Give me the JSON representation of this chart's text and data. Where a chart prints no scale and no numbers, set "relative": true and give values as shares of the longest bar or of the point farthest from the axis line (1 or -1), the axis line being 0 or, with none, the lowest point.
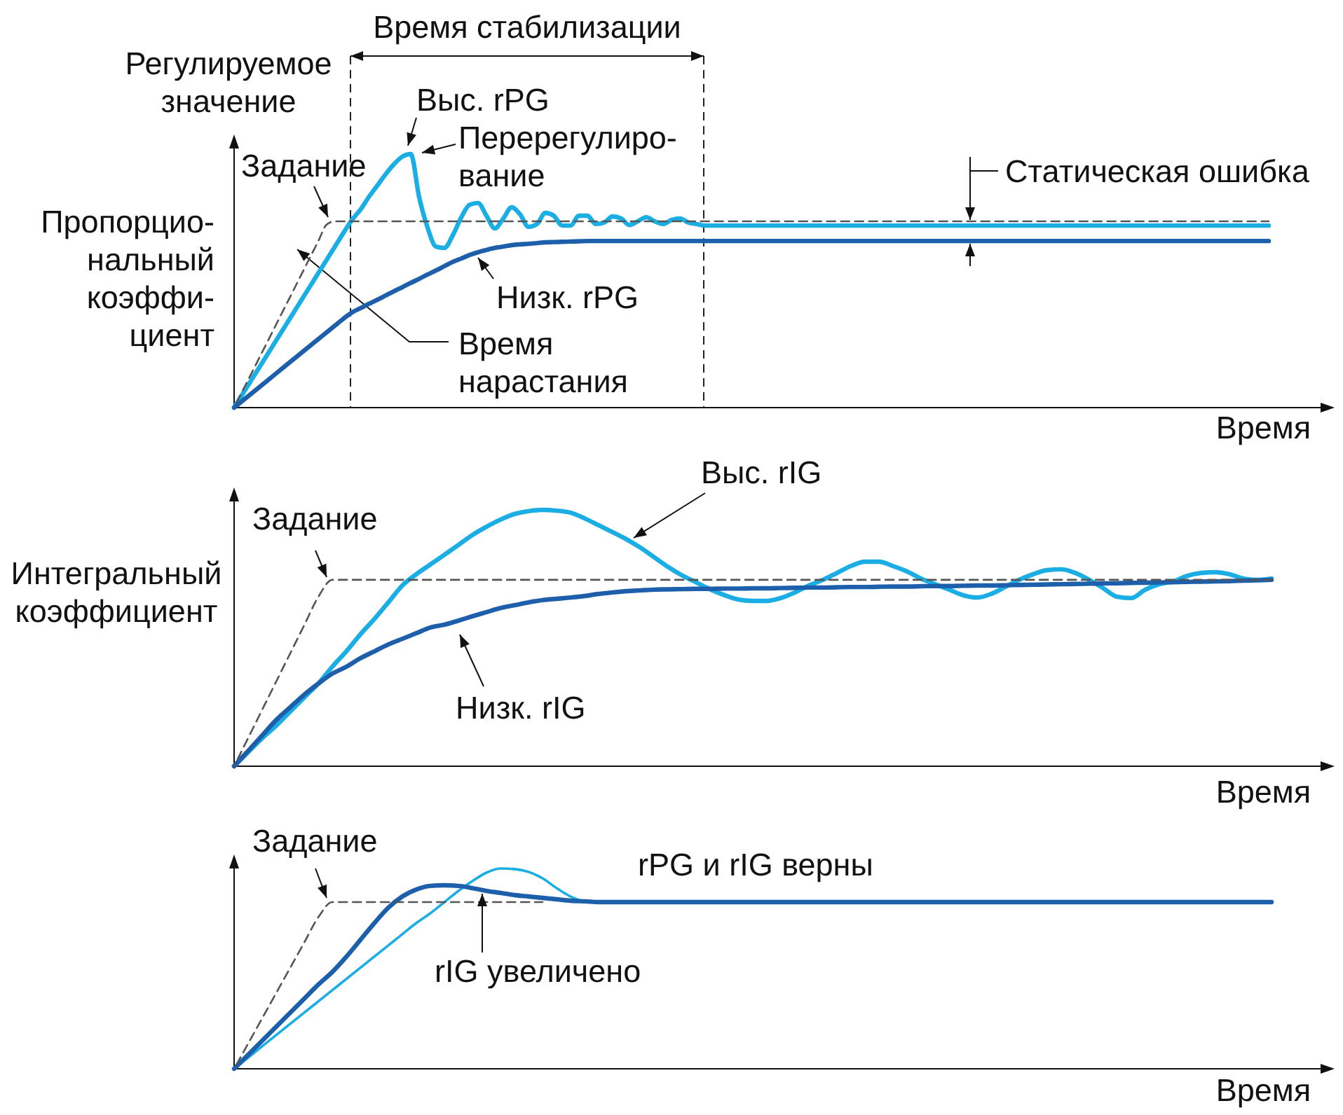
{
  "chart_data": [
    {
      "type": "line",
      "relative": true,
      "xlabel": "Время",
      "ylabel": "Регулируемое\nзначение",
      "title": "Пропорцио-\nнальный\nкоэффи-\nциент",
      "categories": [
        null,
        null,
        null,
        null,
        null,
        null,
        null,
        null,
        null,
        null,
        null,
        null,
        null,
        null,
        null,
        null,
        null,
        null,
        null,
        null,
        null,
        null,
        null,
        null,
        null,
        null,
        null,
        null,
        null,
        null,
        null,
        null,
        null,
        null,
        null,
        null,
        null,
        null,
        null,
        null,
        null,
        null,
        null,
        null,
        null,
        null,
        null,
        null,
        null,
        null,
        null,
        null,
        null,
        null,
        null,
        null,
        null,
        null,
        null,
        null,
        null,
        null,
        null,
        null,
        null,
        null,
        null,
        null,
        null,
        null,
        null,
        null,
        null,
        null,
        null,
        null,
        null,
        null,
        null,
        null,
        null,
        null,
        null,
        null,
        null,
        null,
        null,
        null,
        null,
        null,
        null,
        null,
        null,
        null,
        null,
        null,
        null,
        null,
        null,
        null,
        null,
        null,
        null,
        null,
        null,
        null,
        null,
        null,
        null,
        null,
        null,
        null,
        null,
        null,
        null,
        null,
        null,
        null,
        null,
        null,
        null,
        null,
        null,
        null
      ],
      "series": [
        {
          "name": "Задание",
          "color": "#555555",
          "line_style": "dashed",
          "values": [
            0,
            0.066,
            0.131,
            0.197,
            0.262,
            0.328,
            0.394,
            0.459,
            0.525,
            0.591,
            0.656,
            0.722,
            0.735,
            0.735,
            0.735,
            0.735,
            0.735,
            0.735,
            0.735,
            0.735,
            0.735,
            0.735,
            0.735,
            0.735,
            0.735,
            0.735,
            0.735,
            0.735,
            0.735,
            0.735,
            0.735,
            0.735,
            0.735,
            0.735,
            0.735,
            0.735,
            0.735,
            0.735,
            0.735,
            0.735,
            0.735,
            0.735,
            0.735,
            0.735,
            0.735,
            0.735,
            0.735,
            0.735,
            0.735,
            0.735,
            0.735,
            0.735,
            0.735,
            0.735,
            0.735,
            0.735,
            0.735,
            0.735,
            0.735,
            0.735,
            0.735,
            0.735,
            0.735,
            0.735,
            0.735,
            0.735,
            0.735,
            0.735,
            0.735,
            0.735,
            0.735,
            0.735,
            0.735,
            0.735,
            0.735,
            0.735,
            0.735,
            0.735,
            0.735,
            0.735,
            0.735,
            0.735,
            0.735,
            0.735,
            0.735,
            0.735,
            0.735,
            0.735,
            0.735,
            0.735,
            0.735,
            0.735,
            0.735,
            0.735,
            0.735,
            0.735,
            0.735,
            0.735,
            0.735,
            0.735,
            0.735,
            0.735,
            0.735,
            0.735,
            0.735,
            0.735,
            0.735,
            0.735,
            0.735,
            0.735,
            0.735,
            0.735,
            0.735,
            0.735,
            0.735,
            0.735,
            0.735,
            0.735,
            0.735,
            0.735,
            0.735,
            0.735,
            0.735,
            0.735
          ]
        },
        {
          "name": "Выс. rPG",
          "color": "#1aaee5",
          "line_style": "solid",
          "values": [
            0,
            0.053,
            0.106,
            0.159,
            0.212,
            0.265,
            0.318,
            0.371,
            0.424,
            0.477,
            0.53,
            0.583,
            0.636,
            0.689,
            0.74,
            0.78,
            0.83,
            0.875,
            0.92,
            0.96,
            0.99,
            1,
            0.83,
            0.71,
            0.635,
            0.63,
            0.68,
            0.75,
            0.8,
            0.807,
            0.757,
            0.707,
            0.746,
            0.79,
            0.762,
            0.713,
            0.724,
            0.768,
            0.757,
            0.718,
            0.718,
            0.757,
            0.757,
            0.724,
            0.73,
            0.754,
            0.746,
            0.72,
            0.735,
            0.751,
            0.735,
            0.724,
            0.74,
            0.746,
            0.73,
            0.724,
            0.718,
            0.718,
            0.718,
            0.718,
            0.718,
            0.718,
            0.718,
            0.718,
            0.718,
            0.718,
            0.718,
            0.718,
            0.718,
            0.718,
            0.718,
            0.718,
            0.718,
            0.718,
            0.718,
            0.718,
            0.718,
            0.718,
            0.718,
            0.718,
            0.718,
            0.718,
            0.718,
            0.718,
            0.718,
            0.718,
            0.718,
            0.718,
            0.718,
            0.718,
            0.718,
            0.718,
            0.718,
            0.718,
            0.718,
            0.718,
            0.718,
            0.718,
            0.718,
            0.718,
            0.718,
            0.718,
            0.718,
            0.718,
            0.718,
            0.718,
            0.718,
            0.718,
            0.718,
            0.718,
            0.718,
            0.718,
            0.718,
            0.718,
            0.718,
            0.718,
            0.718,
            0.718,
            0.718,
            0.718,
            0.718,
            0.718,
            0.718,
            0.718
          ]
        },
        {
          "name": "Низк. rPG",
          "color": "#1d5fab",
          "line_style": "solid",
          "values": [
            0,
            0.027,
            0.054,
            0.081,
            0.108,
            0.135,
            0.162,
            0.189,
            0.216,
            0.243,
            0.27,
            0.297,
            0.324,
            0.351,
            0.375,
            0.392,
            0.409,
            0.425,
            0.442,
            0.459,
            0.475,
            0.492,
            0.508,
            0.525,
            0.541,
            0.558,
            0.575,
            0.588,
            0.602,
            0.613,
            0.622,
            0.63,
            0.635,
            0.641,
            0.644,
            0.646,
            0.649,
            0.652,
            0.653,
            0.654,
            0.655,
            0.656,
            0.657,
            0.657,
            0.657,
            0.657,
            0.657,
            0.657,
            0.657,
            0.657,
            0.657,
            0.657,
            0.657,
            0.657,
            0.657,
            0.657,
            0.657,
            0.657,
            0.657,
            0.657,
            0.657,
            0.657,
            0.657,
            0.657,
            0.657,
            0.657,
            0.657,
            0.657,
            0.657,
            0.657,
            0.657,
            0.657,
            0.657,
            0.657,
            0.657,
            0.657,
            0.657,
            0.657,
            0.657,
            0.657,
            0.657,
            0.657,
            0.657,
            0.657,
            0.657,
            0.657,
            0.657,
            0.657,
            0.657,
            0.657,
            0.657,
            0.657,
            0.657,
            0.657,
            0.657,
            0.657,
            0.657,
            0.657,
            0.657,
            0.657,
            0.657,
            0.657,
            0.657,
            0.657,
            0.657,
            0.657,
            0.657,
            0.657,
            0.657,
            0.657,
            0.657,
            0.657,
            0.657,
            0.657,
            0.657,
            0.657,
            0.657,
            0.657,
            0.657,
            0.657,
            0.657,
            0.657,
            0.657,
            0.657
          ]
        }
      ],
      "annotations": [
        "Время стабилизации",
        "Перерегулиро-\nвание",
        "Время\nнарастания",
        "Статическая ошибка"
      ]
    },
    {
      "type": "line",
      "relative": true,
      "xlabel": "Время",
      "title": "Интегральный\nкоэффициент",
      "categories": [
        null,
        null,
        null,
        null,
        null,
        null,
        null,
        null,
        null,
        null,
        null,
        null,
        null,
        null,
        null,
        null,
        null,
        null,
        null,
        null,
        null,
        null,
        null,
        null,
        null,
        null,
        null,
        null,
        null,
        null,
        null,
        null,
        null,
        null,
        null,
        null,
        null,
        null,
        null,
        null,
        null,
        null,
        null,
        null,
        null,
        null,
        null,
        null,
        null,
        null,
        null,
        null,
        null,
        null,
        null,
        null,
        null,
        null,
        null,
        null,
        null,
        null,
        null,
        null,
        null,
        null,
        null,
        null,
        null,
        null,
        null,
        null,
        null,
        null,
        null
      ],
      "series": [
        {
          "name": "Задание",
          "color": "#555555",
          "line_style": "dashed",
          "values": [
            0,
            0.11,
            0.22,
            0.33,
            0.44,
            0.55,
            0.66,
            0.727,
            0.727,
            0.727,
            0.727,
            0.727,
            0.727,
            0.727,
            0.727,
            0.727,
            0.727,
            0.727,
            0.727,
            0.727,
            0.727,
            0.727,
            0.727,
            0.727,
            0.727,
            0.727,
            0.727,
            0.727,
            0.727,
            0.727,
            0.727,
            0.727,
            0.727,
            0.727,
            0.727,
            0.727,
            0.727,
            0.727,
            0.727,
            0.727,
            0.727,
            0.727,
            0.727,
            0.727,
            0.727,
            0.727,
            0.727,
            0.727,
            0.727,
            0.727,
            0.727,
            0.727,
            0.727,
            0.727,
            0.727,
            0.727,
            0.727,
            0.727,
            0.727,
            0.727,
            0.727,
            0.727,
            0.727,
            0.727,
            0.727,
            0.727,
            0.727,
            0.727,
            0.727,
            0.727,
            0.727,
            0.727,
            0.727,
            0.727,
            0.727
          ]
        },
        {
          "name": "Выс. rIG",
          "color": "#1aaee5",
          "line_style": "solid",
          "values": [
            0,
            0.055,
            0.109,
            0.158,
            0.213,
            0.268,
            0.322,
            0.388,
            0.448,
            0.514,
            0.574,
            0.639,
            0.705,
            0.749,
            0.787,
            0.825,
            0.863,
            0.902,
            0.934,
            0.962,
            0.984,
            0.995,
            1,
            0.997,
            0.989,
            0.967,
            0.94,
            0.913,
            0.885,
            0.852,
            0.814,
            0.776,
            0.743,
            0.716,
            0.689,
            0.667,
            0.65,
            0.645,
            0.645,
            0.656,
            0.678,
            0.705,
            0.727,
            0.754,
            0.781,
            0.798,
            0.798,
            0.781,
            0.76,
            0.732,
            0.71,
            0.689,
            0.667,
            0.658,
            0.672,
            0.699,
            0.727,
            0.749,
            0.765,
            0.768,
            0.754,
            0.727,
            0.694,
            0.661,
            0.656,
            0.689,
            0.71,
            0.721,
            0.743,
            0.754,
            0.757,
            0.749,
            0.732,
            0.727,
            0.732
          ]
        },
        {
          "name": "Низк. rIG",
          "color": "#1d5fab",
          "line_style": "solid",
          "values": [
            0,
            0.06,
            0.12,
            0.18,
            0.23,
            0.279,
            0.322,
            0.361,
            0.388,
            0.421,
            0.448,
            0.475,
            0.497,
            0.519,
            0.541,
            0.552,
            0.568,
            0.585,
            0.601,
            0.617,
            0.628,
            0.639,
            0.648,
            0.653,
            0.658,
            0.664,
            0.672,
            0.678,
            0.683,
            0.686,
            0.689,
            0.69,
            0.691,
            0.692,
            0.692,
            0.693,
            0.693,
            0.694,
            0.694,
            0.695,
            0.696,
            0.697,
            0.697,
            0.698,
            0.699,
            0.699,
            0.7,
            0.701,
            0.701,
            0.702,
            0.703,
            0.703,
            0.704,
            0.705,
            0.705,
            0.706,
            0.707,
            0.708,
            0.709,
            0.71,
            0.711,
            0.712,
            0.713,
            0.714,
            0.715,
            0.716,
            0.717,
            0.718,
            0.719,
            0.72,
            0.721,
            0.722,
            0.724,
            0.725,
            0.727
          ]
        }
      ]
    },
    {
      "type": "line",
      "relative": true,
      "xlabel": "Время",
      "categories": [
        null,
        null,
        null,
        null,
        null,
        null,
        null,
        null,
        null,
        null,
        null,
        null,
        null,
        null,
        null,
        null,
        null,
        null,
        null,
        null,
        null,
        null,
        null,
        null,
        null,
        null,
        null,
        null,
        null,
        null,
        null,
        null,
        null,
        null,
        null,
        null,
        null,
        null,
        null,
        null,
        null,
        null,
        null,
        null,
        null,
        null,
        null,
        null,
        null,
        null,
        null,
        null,
        null,
        null,
        null,
        null,
        null,
        null,
        null,
        null,
        null,
        null,
        null,
        null,
        null,
        null,
        null,
        null,
        null,
        null,
        null,
        null,
        null,
        null,
        null
      ],
      "series": [
        {
          "name": "Задание",
          "color": "#555555",
          "line_style": "dashed",
          "values": [
            0,
            0.126,
            0.252,
            0.378,
            0.504,
            0.63,
            0.756,
            0.832,
            0.832,
            0.832,
            0.832,
            0.832,
            0.832,
            0.832,
            0.832,
            0.832,
            0.832,
            0.832,
            0.832,
            0.832,
            0.832,
            0.832,
            0.832,
            null,
            null,
            null,
            null,
            null,
            null,
            null,
            null,
            null,
            null,
            null,
            null,
            null,
            null,
            null,
            null,
            null,
            null,
            null,
            null,
            null,
            null,
            null,
            null,
            null,
            null,
            null,
            null,
            null,
            null,
            null,
            null,
            null,
            null,
            null,
            null,
            null,
            null,
            null,
            null,
            null,
            null,
            null,
            null,
            null,
            null,
            null,
            null,
            null,
            null,
            null,
            null
          ]
        },
        {
          "color": "#1aaee5",
          "line_style": "solid",
          "values": [
            0,
            0.056,
            0.112,
            0.168,
            0.224,
            0.28,
            0.336,
            0.392,
            0.448,
            0.504,
            0.56,
            0.616,
            0.672,
            0.728,
            0.776,
            0.832,
            0.888,
            0.937,
            0.979,
            1,
            0.997,
            0.983,
            0.951,
            0.902,
            0.86,
            0.836,
            0.832,
            null,
            null,
            null,
            null,
            null,
            null,
            null,
            null,
            null,
            null,
            null,
            null,
            null,
            null,
            null,
            null,
            null,
            null,
            null,
            null,
            null,
            null,
            null,
            null,
            null,
            null,
            null,
            null,
            null,
            null,
            null,
            null,
            null,
            null,
            null,
            null,
            null,
            null,
            null,
            null,
            null,
            null,
            null,
            null,
            null,
            null,
            null,
            null
          ]
        },
        {
          "name": "rIG увеличено",
          "color": "#1d5fab",
          "line_style": "solid",
          "values": [
            0,
            0.07,
            0.14,
            0.21,
            0.28,
            0.35,
            0.42,
            0.483,
            0.559,
            0.643,
            0.727,
            0.804,
            0.86,
            0.895,
            0.913,
            0.916,
            0.913,
            0.902,
            0.888,
            0.878,
            0.867,
            0.86,
            0.853,
            0.846,
            0.839,
            0.836,
            0.832,
            0.832,
            0.832,
            0.832,
            0.832,
            0.832,
            0.832,
            0.832,
            0.832,
            0.832,
            0.832,
            0.832,
            0.832,
            0.832,
            0.832,
            0.832,
            0.832,
            0.832,
            0.832,
            0.832,
            0.832,
            0.832,
            0.832,
            0.832,
            0.832,
            0.832,
            0.832,
            0.832,
            0.832,
            0.832,
            0.832,
            0.832,
            0.832,
            0.832,
            0.832,
            0.832,
            0.832,
            0.832,
            0.832,
            0.832,
            0.832,
            0.832,
            0.832,
            0.832,
            0.832,
            0.832,
            0.832,
            0.832,
            0.832
          ]
        }
      ],
      "annotations": [
        "rPG и rIG верны"
      ]
    }
  ]
}
